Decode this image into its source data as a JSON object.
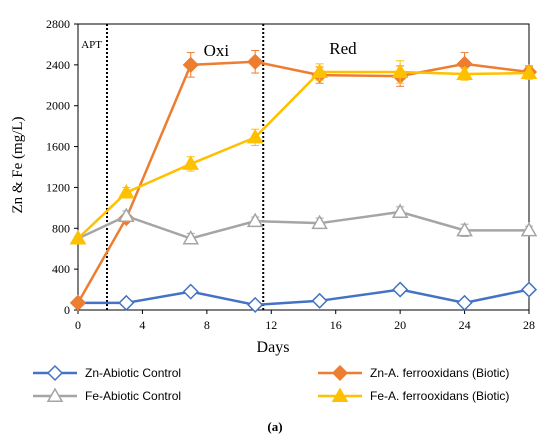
{
  "chart_data": {
    "type": "line",
    "xlabel": "Days",
    "ylabel": "Zn & Fe (mg/L)",
    "xlim": [
      0,
      28
    ],
    "ylim": [
      0,
      2800
    ],
    "xticks": [
      0,
      4,
      8,
      12,
      16,
      20,
      24,
      28
    ],
    "yticks": [
      0,
      400,
      800,
      1200,
      1600,
      2000,
      2400,
      2800
    ],
    "grid": false,
    "legend_position": "bottom",
    "x": [
      0,
      3,
      7,
      11,
      15,
      20,
      24,
      28
    ],
    "series": [
      {
        "name": "Zn-Abiotic Control",
        "marker": "diamond-open",
        "color": "#4472C4",
        "values": [
          70,
          70,
          180,
          50,
          90,
          200,
          70,
          200
        ],
        "errors": [
          0,
          0,
          0,
          0,
          0,
          0,
          0,
          0
        ]
      },
      {
        "name": "Zn-A. ferrooxidans (Biotic)",
        "marker": "diamond-filled",
        "color": "#ED7D31",
        "values": [
          70,
          900,
          2400,
          2430,
          2300,
          2290,
          2410,
          2330
        ],
        "errors": [
          0,
          0,
          120,
          110,
          80,
          100,
          110,
          60
        ]
      },
      {
        "name": "Fe-Abiotic Control",
        "marker": "triangle-open",
        "color": "#A5A5A5",
        "values": [
          700,
          920,
          700,
          870,
          850,
          960,
          780,
          780
        ],
        "errors": [
          0,
          50,
          50,
          40,
          50,
          50,
          60,
          40
        ]
      },
      {
        "name": "Fe-A. ferrooxidans (Biotic)",
        "marker": "triangle-filled",
        "color": "#FFC000",
        "values": [
          700,
          1150,
          1430,
          1690,
          2330,
          2330,
          2310,
          2320
        ],
        "errors": [
          0,
          50,
          70,
          80,
          80,
          110,
          60,
          60
        ]
      }
    ],
    "annotations": [
      {
        "text": "APT",
        "x": 0.2
      },
      {
        "text": "Oxi",
        "x": 7.8
      },
      {
        "text": "Red",
        "x": 15.6
      }
    ],
    "phase_lines": [
      1.8,
      11.5
    ]
  },
  "caption": "(a)"
}
